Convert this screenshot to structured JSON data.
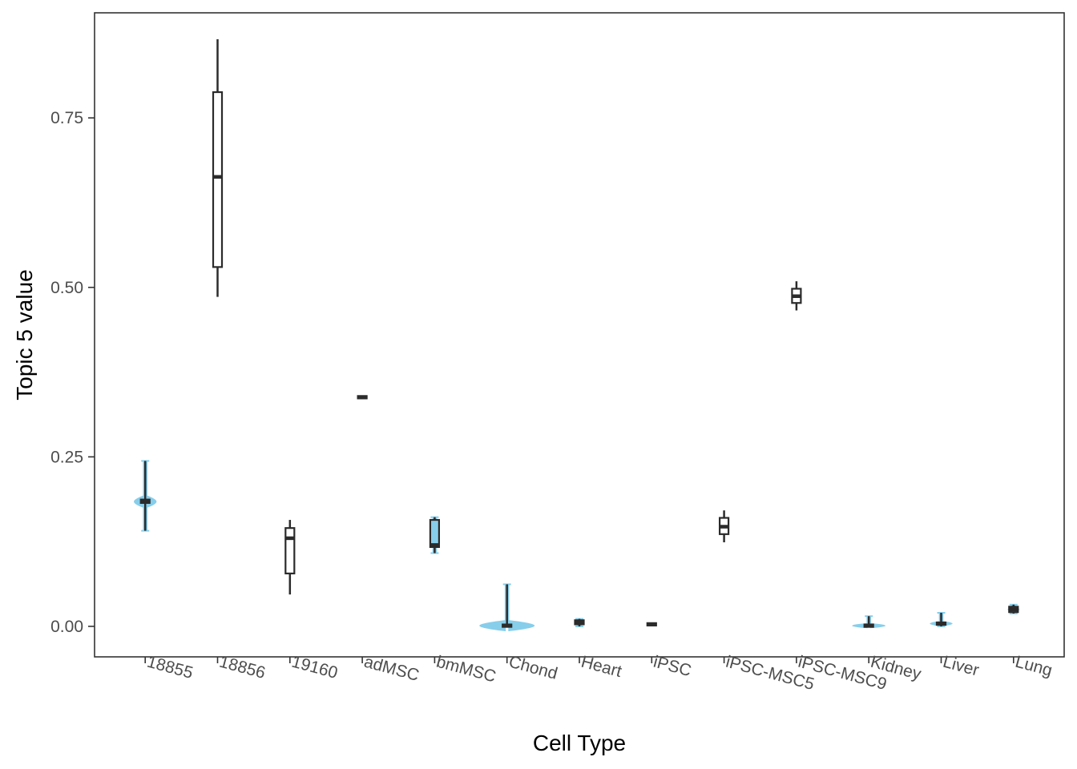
{
  "chart_data": {
    "type": "violin",
    "title": "",
    "xlabel": "Cell Type",
    "ylabel": "Topic 5 value",
    "ylim": [
      -0.045,
      0.905
    ],
    "yticks": [
      0.0,
      0.25,
      0.5,
      0.75
    ],
    "ytick_labels": [
      "0.00",
      "0.25",
      "0.50",
      "0.75"
    ],
    "grid": false,
    "legend": "none",
    "colors": {
      "violin": "#87ceeb",
      "box": "#2b2b2b",
      "frame": "#333333"
    },
    "categories": [
      "18855",
      "18856",
      "19160",
      "adMSC",
      "bmMSC",
      "Chond",
      "Heart",
      "iPSC",
      "iPSC-MSC5",
      "iPSC-MSC9",
      "Kidney",
      "Liver",
      "Lung"
    ],
    "groups": [
      {
        "category": "18855",
        "min": 0.141,
        "q1": 0.182,
        "median": 0.184,
        "q3": 0.187,
        "max": 0.244,
        "violin_width": 0.3
      },
      {
        "category": "18856",
        "min": 0.486,
        "q1": 0.53,
        "median": 0.663,
        "q3": 0.788,
        "max": 0.866,
        "violin_width": 0.0
      },
      {
        "category": "19160",
        "min": 0.047,
        "q1": 0.078,
        "median": 0.13,
        "q3": 0.145,
        "max": 0.157,
        "violin_width": 0.0
      },
      {
        "category": "adMSC",
        "min": 0.337,
        "q1": 0.337,
        "median": 0.338,
        "q3": 0.339,
        "max": 0.339,
        "violin_width": 0.0
      },
      {
        "category": "bmMSC",
        "min": 0.108,
        "q1": 0.117,
        "median": 0.12,
        "q3": 0.157,
        "max": 0.161,
        "violin_width": 0.04
      },
      {
        "category": "Chond",
        "min": 0.0,
        "q1": 0.0,
        "median": 0.001,
        "q3": 0.002,
        "max": 0.062,
        "violin_width": 0.75
      },
      {
        "category": "Heart",
        "min": 0.0,
        "q1": 0.003,
        "median": 0.006,
        "q3": 0.009,
        "max": 0.011,
        "violin_width": 0.12
      },
      {
        "category": "iPSC",
        "min": 0.002,
        "q1": 0.002,
        "median": 0.003,
        "q3": 0.004,
        "max": 0.004,
        "violin_width": 0.0
      },
      {
        "category": "iPSC-MSC5",
        "min": 0.124,
        "q1": 0.136,
        "median": 0.147,
        "q3": 0.16,
        "max": 0.171,
        "violin_width": 0.0
      },
      {
        "category": "iPSC-MSC9",
        "min": 0.466,
        "q1": 0.477,
        "median": 0.487,
        "q3": 0.498,
        "max": 0.509,
        "violin_width": 0.0
      },
      {
        "category": "Kidney",
        "min": 0.0,
        "q1": 0.0,
        "median": 0.001,
        "q3": 0.002,
        "max": 0.015,
        "violin_width": 0.45
      },
      {
        "category": "Liver",
        "min": 0.0,
        "q1": 0.003,
        "median": 0.004,
        "q3": 0.006,
        "max": 0.02,
        "violin_width": 0.3
      },
      {
        "category": "Lung",
        "min": 0.019,
        "q1": 0.021,
        "median": 0.025,
        "q3": 0.029,
        "max": 0.032,
        "violin_width": 0.15
      }
    ]
  }
}
